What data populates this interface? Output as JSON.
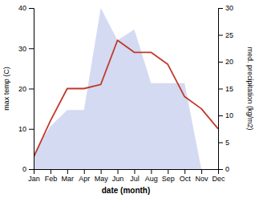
{
  "chart_data": {
    "type": "line",
    "xlabel": "date (month)",
    "ylabel": "max temp (C)",
    "y2label": "med. precipitation (kg/m2)",
    "categories": [
      "Jan",
      "Feb",
      "Mar",
      "Apr",
      "May",
      "Jun",
      "Jul",
      "Aug",
      "Sep",
      "Oct",
      "Nov",
      "Dec"
    ],
    "series": [
      {
        "type": "line",
        "color": "#c0392b",
        "values": [
          3,
          12,
          20,
          20,
          21,
          32,
          29,
          29,
          26,
          18,
          15,
          10
        ]
      },
      {
        "type": "area",
        "color": "#b0bce8",
        "axis": "y2",
        "values": [
          3,
          8,
          11,
          11,
          30,
          24,
          26,
          16,
          16,
          16,
          0,
          0
        ]
      }
    ],
    "ylim": [
      0,
      40
    ],
    "yticks": [
      0,
      10,
      20,
      30,
      40
    ],
    "y2lim": [
      0,
      30
    ],
    "y2ticks": [
      0,
      5,
      10,
      15,
      20,
      25,
      30
    ]
  }
}
